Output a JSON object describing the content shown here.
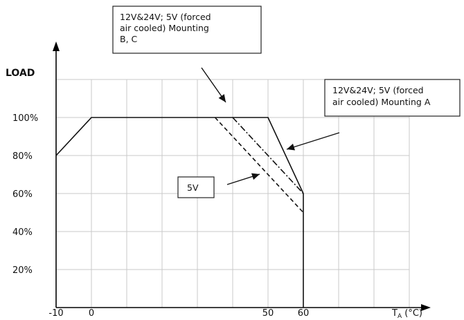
{
  "chart_data": {
    "type": "line",
    "ylabel": "LOAD",
    "xlabel_main": "T",
    "xlabel_sub": "A",
    "xlabel_unit": " (°C)",
    "x_ticks": [
      {
        "value": -10,
        "label": "-10"
      },
      {
        "value": 0,
        "label": "0"
      },
      {
        "value": 50,
        "label": "50"
      },
      {
        "value": 60,
        "label": "60"
      }
    ],
    "y_ticks": [
      {
        "value": 20,
        "label": "20%"
      },
      {
        "value": 40,
        "label": "40%"
      },
      {
        "value": 60,
        "label": "60%"
      },
      {
        "value": 80,
        "label": "80%"
      },
      {
        "value": 100,
        "label": "100%"
      }
    ],
    "xlim": [
      -10,
      90
    ],
    "ylim": [
      0,
      120
    ],
    "grid_x": [
      -10,
      0,
      10,
      20,
      30,
      40,
      50,
      60,
      70,
      80,
      90
    ],
    "grid_y": [
      0,
      20,
      40,
      60,
      80,
      100,
      120
    ],
    "grid": true,
    "series": [
      {
        "style": "solid",
        "points": [
          [
            -10,
            80
          ],
          [
            0,
            100
          ],
          [
            50,
            100
          ],
          [
            60,
            60
          ],
          [
            60,
            0
          ]
        ]
      },
      {
        "style": "dashdot",
        "points": [
          [
            40,
            100
          ],
          [
            60,
            60
          ]
        ]
      },
      {
        "style": "dashed",
        "points": [
          [
            35,
            100
          ],
          [
            60,
            50
          ]
        ]
      }
    ],
    "annotations": [
      {
        "id": "mounting-bc",
        "lines": [
          "12V&24V; 5V (forced",
          "air cooled) Mounting",
          "B, C"
        ]
      },
      {
        "id": "mounting-a",
        "lines": [
          "12V&24V; 5V (forced",
          "air cooled) Mounting A"
        ]
      },
      {
        "id": "five-v",
        "lines": [
          "5V"
        ]
      }
    ]
  }
}
